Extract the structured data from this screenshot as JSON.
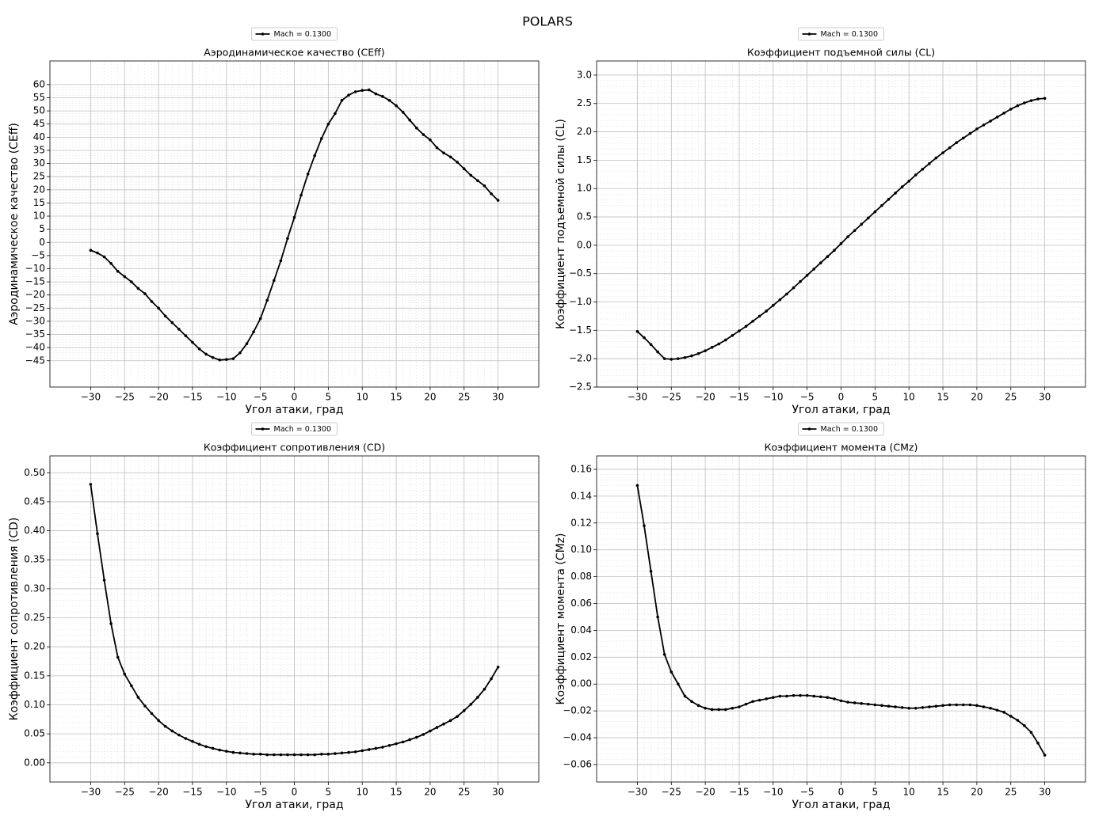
{
  "title": "POLARS",
  "chart_data": [
    {
      "type": "line",
      "title": "Аэродинамическое качество (CEff)",
      "x_label": "Угол атаки, град",
      "y_label": "Аэродинамическое качество (CEff)",
      "x": [
        -30,
        -29,
        -28,
        -27,
        -26,
        -25,
        -24,
        -23,
        -22,
        -21,
        -20,
        -19,
        -18,
        -17,
        -16,
        -15,
        -14,
        -13,
        -12,
        -11,
        -10,
        -9,
        -8,
        -7,
        -6,
        -5,
        -4,
        -3,
        -2,
        -1,
        0,
        1,
        2,
        3,
        4,
        5,
        6,
        7,
        8,
        9,
        10,
        11,
        12,
        13,
        14,
        15,
        16,
        17,
        18,
        19,
        20,
        21,
        22,
        23,
        24,
        25,
        26,
        27,
        28,
        29,
        30
      ],
      "series": [
        {
          "name": "Mach = 0.1300",
          "color": "#000000",
          "values": [
            -3,
            -4,
            -5.5,
            -8,
            -11,
            -13,
            -15,
            -17.5,
            -19.5,
            -22.5,
            -25,
            -28,
            -30.5,
            -33,
            -35.5,
            -38,
            -40.5,
            -42.5,
            -43.8,
            -44.7,
            -44.5,
            -44.2,
            -42,
            -38.5,
            -34,
            -29,
            -22,
            -14.5,
            -7,
            1.5,
            9.5,
            18,
            26,
            33,
            39.5,
            45,
            49,
            54,
            56,
            57.3,
            57.8,
            58,
            56.5,
            55.5,
            54,
            52,
            49.5,
            46.5,
            43.5,
            41,
            39,
            36,
            34,
            32.5,
            30.5,
            28,
            25.5,
            23.5,
            21.5,
            18.5,
            16
          ]
        }
      ],
      "xlim": [
        -36,
        36
      ],
      "xticks": [
        {
          "value": -30,
          "label": "−30"
        },
        {
          "value": -25,
          "label": "−25"
        },
        {
          "value": -20,
          "label": "−20"
        },
        {
          "value": -15,
          "label": "−15"
        },
        {
          "value": -10,
          "label": "−10"
        },
        {
          "value": -5,
          "label": "−5"
        },
        0,
        5,
        10,
        15,
        20,
        25,
        30
      ],
      "ylim": [
        -55,
        69
      ],
      "yticks": [
        {
          "value": -45,
          "label": "−45"
        },
        {
          "value": -40,
          "label": "−40"
        },
        {
          "value": -35,
          "label": "−35"
        },
        {
          "value": -30,
          "label": "−30"
        },
        {
          "value": -25,
          "label": "−25"
        },
        {
          "value": -20,
          "label": "−20"
        },
        {
          "value": -15,
          "label": "−15"
        },
        {
          "value": -10,
          "label": "−10"
        },
        {
          "value": -5,
          "label": "−5"
        },
        0,
        5,
        10,
        15,
        20,
        25,
        30,
        35,
        40,
        45,
        50,
        55,
        60
      ],
      "grid": true,
      "minor_grid": 5,
      "legend": "upper center"
    },
    {
      "type": "line",
      "title": "Коэффициент подъемной силы (CL)",
      "x_label": "Угол атаки, град",
      "y_label": "Коэффициент подъемной силы (CL)",
      "x": [
        -30,
        -29,
        -28,
        -27,
        -26,
        -25,
        -24,
        -23,
        -22,
        -21,
        -20,
        -19,
        -18,
        -17,
        -16,
        -15,
        -14,
        -13,
        -12,
        -11,
        -10,
        -9,
        -8,
        -7,
        -6,
        -5,
        -4,
        -3,
        -2,
        -1,
        0,
        1,
        2,
        3,
        4,
        5,
        6,
        7,
        8,
        9,
        10,
        11,
        12,
        13,
        14,
        15,
        16,
        17,
        18,
        19,
        20,
        21,
        22,
        23,
        24,
        25,
        26,
        27,
        28,
        29,
        30
      ],
      "series": [
        {
          "name": "Mach = 0.1300",
          "color": "#000000",
          "values": [
            -1.52,
            -1.63,
            -1.75,
            -1.88,
            -2.0,
            -2.01,
            -2.0,
            -1.98,
            -1.95,
            -1.91,
            -1.86,
            -1.8,
            -1.74,
            -1.67,
            -1.59,
            -1.51,
            -1.43,
            -1.34,
            -1.25,
            -1.16,
            -1.06,
            -0.96,
            -0.86,
            -0.75,
            -0.64,
            -0.53,
            -0.42,
            -0.31,
            -0.2,
            -0.09,
            0.03,
            0.15,
            0.26,
            0.37,
            0.48,
            0.59,
            0.7,
            0.81,
            0.92,
            1.03,
            1.13,
            1.24,
            1.34,
            1.44,
            1.54,
            1.63,
            1.72,
            1.81,
            1.89,
            1.97,
            2.05,
            2.12,
            2.19,
            2.26,
            2.33,
            2.4,
            2.46,
            2.51,
            2.55,
            2.58,
            2.59
          ]
        }
      ],
      "xlim": [
        -36,
        36
      ],
      "xticks": [
        {
          "value": -30,
          "label": "−30"
        },
        {
          "value": -25,
          "label": "−25"
        },
        {
          "value": -20,
          "label": "−20"
        },
        {
          "value": -15,
          "label": "−15"
        },
        {
          "value": -10,
          "label": "−10"
        },
        {
          "value": -5,
          "label": "−5"
        },
        0,
        5,
        10,
        15,
        20,
        25,
        30
      ],
      "ylim": [
        -2.5,
        3.25
      ],
      "yticks": [
        {
          "value": -2.5,
          "label": "−2.5"
        },
        {
          "value": -2,
          "label": "−2.0"
        },
        {
          "value": -1.5,
          "label": "−1.5"
        },
        {
          "value": -1,
          "label": "−1.0"
        },
        {
          "value": -0.5,
          "label": "−0.5"
        },
        {
          "value": 0,
          "label": "0.0"
        },
        0.5,
        {
          "value": 1,
          "label": "1.0"
        },
        1.5,
        {
          "value": 2,
          "label": "2.0"
        },
        2.5,
        {
          "value": 3,
          "label": "3.0"
        }
      ],
      "grid": true,
      "minor_grid": 5,
      "legend": "upper center"
    },
    {
      "type": "line",
      "title": "Коэффициент сопротивления (CD)",
      "x_label": "Угол атаки, град",
      "y_label": "Коэффициент сопротивления (CD)",
      "x": [
        -30,
        -29,
        -28,
        -27,
        -26,
        -25,
        -24,
        -23,
        -22,
        -21,
        -20,
        -19,
        -18,
        -17,
        -16,
        -15,
        -14,
        -13,
        -12,
        -11,
        -10,
        -9,
        -8,
        -7,
        -6,
        -5,
        -4,
        -3,
        -2,
        -1,
        0,
        1,
        2,
        3,
        4,
        5,
        6,
        7,
        8,
        9,
        10,
        11,
        12,
        13,
        14,
        15,
        16,
        17,
        18,
        19,
        20,
        21,
        22,
        23,
        24,
        25,
        26,
        27,
        28,
        29,
        30
      ],
      "series": [
        {
          "name": "Mach = 0.1300",
          "color": "#000000",
          "values": [
            0.48,
            0.395,
            0.315,
            0.24,
            0.182,
            0.153,
            0.133,
            0.113,
            0.098,
            0.085,
            0.073,
            0.063,
            0.055,
            0.048,
            0.042,
            0.037,
            0.032,
            0.028,
            0.025,
            0.022,
            0.02,
            0.018,
            0.017,
            0.016,
            0.015,
            0.015,
            0.014,
            0.014,
            0.014,
            0.014,
            0.014,
            0.014,
            0.014,
            0.014,
            0.015,
            0.015,
            0.016,
            0.017,
            0.018,
            0.019,
            0.021,
            0.023,
            0.025,
            0.027,
            0.03,
            0.033,
            0.036,
            0.04,
            0.044,
            0.049,
            0.055,
            0.061,
            0.067,
            0.073,
            0.08,
            0.09,
            0.101,
            0.113,
            0.127,
            0.145,
            0.165
          ]
        }
      ],
      "xlim": [
        -36,
        36
      ],
      "xticks": [
        {
          "value": -30,
          "label": "−30"
        },
        {
          "value": -25,
          "label": "−25"
        },
        {
          "value": -20,
          "label": "−20"
        },
        {
          "value": -15,
          "label": "−15"
        },
        {
          "value": -10,
          "label": "−10"
        },
        {
          "value": -5,
          "label": "−5"
        },
        0,
        5,
        10,
        15,
        20,
        25,
        30
      ],
      "ylim": [
        -0.033,
        0.529
      ],
      "yticks": [
        {
          "value": 0,
          "label": "0.00"
        },
        0.05,
        {
          "value": 0.1,
          "label": "0.10"
        },
        0.15,
        {
          "value": 0.2,
          "label": "0.20"
        },
        0.25,
        {
          "value": 0.3,
          "label": "0.30"
        },
        0.35,
        {
          "value": 0.4,
          "label": "0.40"
        },
        0.45,
        {
          "value": 0.5,
          "label": "0.50"
        }
      ],
      "grid": true,
      "minor_grid": 5,
      "legend": "upper center"
    },
    {
      "type": "line",
      "title": "Коэффициент момента (CMz)",
      "x_label": "Угол атаки, град",
      "y_label": "Коэффициент момента (CMz)",
      "x": [
        -30,
        -29,
        -28,
        -27,
        -26,
        -25,
        -24,
        -23,
        -22,
        -21,
        -20,
        -19,
        -18,
        -17,
        -16,
        -15,
        -14,
        -13,
        -12,
        -11,
        -10,
        -9,
        -8,
        -7,
        -6,
        -5,
        -4,
        -3,
        -2,
        -1,
        0,
        1,
        2,
        3,
        4,
        5,
        6,
        7,
        8,
        9,
        10,
        11,
        12,
        13,
        14,
        15,
        16,
        17,
        18,
        19,
        20,
        21,
        22,
        23,
        24,
        25,
        26,
        27,
        28,
        29,
        30
      ],
      "series": [
        {
          "name": "Mach = 0.1300",
          "color": "#000000",
          "values": [
            0.148,
            0.118,
            0.084,
            0.05,
            0.022,
            0.009,
            0.0,
            -0.009,
            -0.013,
            -0.016,
            -0.018,
            -0.019,
            -0.019,
            -0.019,
            -0.018,
            -0.017,
            -0.015,
            -0.013,
            -0.012,
            -0.011,
            -0.01,
            -0.009,
            -0.009,
            -0.0085,
            -0.0085,
            -0.0085,
            -0.009,
            -0.0095,
            -0.01,
            -0.011,
            -0.0125,
            -0.0135,
            -0.014,
            -0.0145,
            -0.015,
            -0.0155,
            -0.016,
            -0.0165,
            -0.017,
            -0.0175,
            -0.018,
            -0.018,
            -0.0175,
            -0.017,
            -0.0165,
            -0.016,
            -0.0155,
            -0.0155,
            -0.0155,
            -0.0155,
            -0.016,
            -0.017,
            -0.018,
            -0.0195,
            -0.021,
            -0.024,
            -0.027,
            -0.031,
            -0.036,
            -0.044,
            -0.053
          ]
        }
      ],
      "xlim": [
        -36,
        36
      ],
      "xticks": [
        {
          "value": -30,
          "label": "−30"
        },
        {
          "value": -25,
          "label": "−25"
        },
        {
          "value": -20,
          "label": "−20"
        },
        {
          "value": -15,
          "label": "−15"
        },
        {
          "value": -10,
          "label": "−10"
        },
        {
          "value": -5,
          "label": "−5"
        },
        0,
        5,
        10,
        15,
        20,
        25,
        30
      ],
      "ylim": [
        -0.073,
        0.17
      ],
      "yticks": [
        {
          "value": -0.06,
          "label": "−0.06"
        },
        {
          "value": -0.04,
          "label": "−0.04"
        },
        {
          "value": -0.02,
          "label": "−0.02"
        },
        {
          "value": 0,
          "label": "0.00"
        },
        0.02,
        0.04,
        0.06,
        0.08,
        {
          "value": 0.1,
          "label": "0.10"
        },
        0.12,
        0.14,
        0.16
      ],
      "grid": true,
      "minor_grid": 5,
      "legend": "upper center"
    }
  ]
}
